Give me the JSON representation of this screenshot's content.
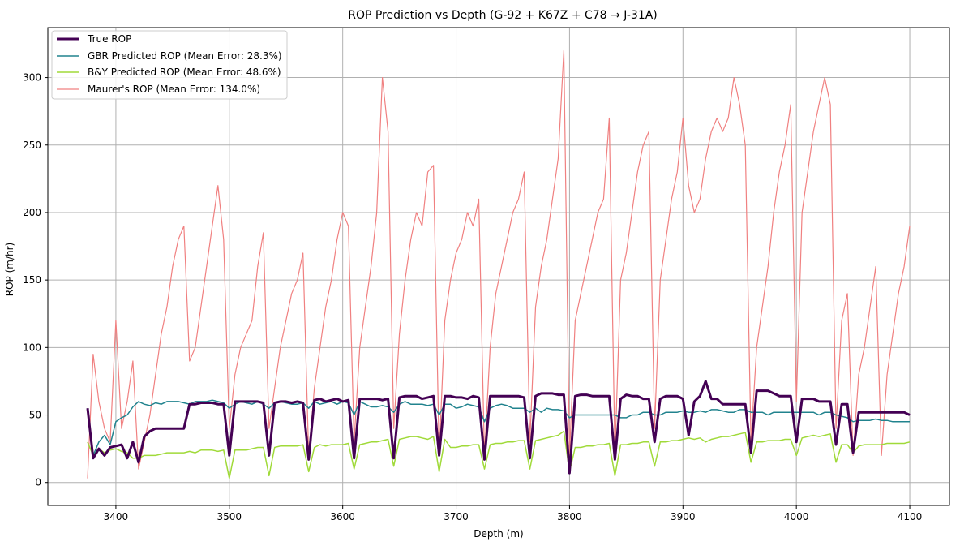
{
  "chart_data": {
    "type": "line",
    "title": "ROP Prediction vs Depth (G-92 + K67Z + C78 → J-31A)",
    "xlabel": "Depth (m)",
    "ylabel": "ROP (m/hr)",
    "xlim": [
      3340,
      4135
    ],
    "ylim": [
      -17,
      337
    ],
    "xticks": [
      3400,
      3500,
      3600,
      3700,
      3800,
      3900,
      4000,
      4100
    ],
    "yticks": [
      0,
      50,
      100,
      150,
      200,
      250,
      300
    ],
    "grid": true,
    "legend_position": "top-left",
    "x": [
      3375,
      3380,
      3385,
      3390,
      3395,
      3400,
      3405,
      3410,
      3415,
      3420,
      3425,
      3430,
      3435,
      3440,
      3445,
      3450,
      3455,
      3460,
      3465,
      3470,
      3475,
      3480,
      3485,
      3490,
      3495,
      3500,
      3505,
      3510,
      3515,
      3520,
      3525,
      3530,
      3535,
      3540,
      3545,
      3550,
      3555,
      3560,
      3565,
      3570,
      3575,
      3580,
      3585,
      3590,
      3595,
      3600,
      3605,
      3610,
      3615,
      3620,
      3625,
      3630,
      3635,
      3640,
      3645,
      3650,
      3655,
      3660,
      3665,
      3670,
      3675,
      3680,
      3685,
      3690,
      3695,
      3700,
      3705,
      3710,
      3715,
      3720,
      3725,
      3730,
      3735,
      3740,
      3745,
      3750,
      3755,
      3760,
      3765,
      3770,
      3775,
      3780,
      3785,
      3790,
      3795,
      3800,
      3805,
      3810,
      3815,
      3820,
      3825,
      3830,
      3835,
      3840,
      3845,
      3850,
      3855,
      3860,
      3865,
      3870,
      3875,
      3880,
      3885,
      3890,
      3895,
      3900,
      3905,
      3910,
      3915,
      3920,
      3925,
      3930,
      3935,
      3940,
      3945,
      3950,
      3955,
      3960,
      3965,
      3970,
      3975,
      3980,
      3985,
      3990,
      3995,
      4000,
      4005,
      4010,
      4015,
      4020,
      4025,
      4030,
      4035,
      4040,
      4045,
      4050,
      4055,
      4060,
      4065,
      4070,
      4075,
      4080,
      4085,
      4090,
      4095,
      4100
    ],
    "series": [
      {
        "name": "True ROP",
        "color": "#440154",
        "width": 3,
        "values": [
          55,
          18,
          25,
          20,
          26,
          27,
          28,
          18,
          30,
          15,
          34,
          38,
          40,
          40,
          40,
          40,
          40,
          40,
          58,
          58,
          59,
          59,
          59,
          58,
          58,
          20,
          60,
          60,
          60,
          60,
          60,
          59,
          20,
          59,
          60,
          60,
          59,
          60,
          59,
          17,
          61,
          62,
          60,
          61,
          62,
          60,
          61,
          18,
          62,
          62,
          62,
          62,
          61,
          62,
          18,
          63,
          64,
          64,
          64,
          62,
          63,
          64,
          20,
          64,
          64,
          63,
          63,
          62,
          64,
          63,
          17,
          64,
          64,
          64,
          64,
          64,
          64,
          63,
          18,
          64,
          66,
          66,
          66,
          65,
          65,
          7,
          64,
          65,
          65,
          64,
          64,
          64,
          64,
          17,
          62,
          65,
          64,
          64,
          62,
          62,
          30,
          62,
          64,
          64,
          64,
          62,
          35,
          60,
          64,
          75,
          62,
          62,
          58,
          58,
          58,
          58,
          58,
          22,
          68,
          68,
          68,
          66,
          64,
          64,
          64,
          30,
          62,
          62,
          62,
          60,
          60,
          60,
          28,
          58,
          58,
          22,
          52,
          52,
          52,
          52,
          52,
          52,
          52,
          52,
          52,
          50
        ]
      },
      {
        "name": "GBR Predicted ROP (Mean Error: 28.3%)",
        "color": "#21838e",
        "width": 1.5,
        "values": [
          55,
          20,
          30,
          35,
          28,
          45,
          48,
          50,
          56,
          60,
          58,
          57,
          59,
          58,
          60,
          60,
          60,
          59,
          58,
          60,
          60,
          60,
          61,
          60,
          59,
          55,
          58,
          60,
          59,
          58,
          60,
          58,
          55,
          59,
          60,
          59,
          58,
          58,
          59,
          55,
          60,
          58,
          59,
          60,
          58,
          60,
          59,
          50,
          60,
          58,
          56,
          56,
          57,
          56,
          52,
          58,
          60,
          58,
          58,
          58,
          57,
          58,
          50,
          58,
          58,
          55,
          56,
          58,
          57,
          56,
          45,
          55,
          57,
          58,
          57,
          55,
          55,
          55,
          52,
          55,
          52,
          55,
          54,
          54,
          53,
          48,
          50,
          50,
          50,
          50,
          50,
          50,
          50,
          50,
          48,
          48,
          50,
          50,
          52,
          52,
          50,
          50,
          52,
          52,
          52,
          53,
          52,
          52,
          53,
          52,
          54,
          54,
          53,
          52,
          52,
          54,
          54,
          52,
          52,
          52,
          50,
          52,
          52,
          52,
          52,
          52,
          52,
          52,
          52,
          50,
          52,
          52,
          50,
          49,
          48,
          45,
          46,
          46,
          46,
          47,
          46,
          46,
          45,
          45,
          45,
          45
        ]
      },
      {
        "name": "B&Y Predicted ROP (Mean Error: 48.6%)",
        "color": "#a0da39",
        "width": 1.5,
        "values": [
          30,
          20,
          25,
          22,
          24,
          25,
          23,
          22,
          18,
          18,
          20,
          20,
          20,
          21,
          22,
          22,
          22,
          22,
          23,
          22,
          24,
          24,
          24,
          23,
          24,
          3,
          24,
          24,
          24,
          25,
          26,
          26,
          5,
          26,
          27,
          27,
          27,
          27,
          28,
          8,
          26,
          28,
          27,
          28,
          28,
          28,
          29,
          10,
          28,
          29,
          30,
          30,
          31,
          32,
          12,
          32,
          33,
          34,
          34,
          33,
          32,
          34,
          8,
          32,
          26,
          26,
          27,
          27,
          28,
          28,
          10,
          28,
          29,
          29,
          30,
          30,
          31,
          31,
          10,
          31,
          32,
          33,
          34,
          35,
          38,
          8,
          26,
          26,
          27,
          27,
          28,
          28,
          29,
          5,
          28,
          28,
          29,
          29,
          30,
          30,
          12,
          30,
          30,
          31,
          31,
          32,
          33,
          32,
          33,
          30,
          32,
          33,
          34,
          34,
          35,
          36,
          37,
          15,
          30,
          30,
          31,
          31,
          31,
          32,
          32,
          20,
          33,
          34,
          35,
          34,
          35,
          36,
          15,
          28,
          28,
          22,
          27,
          28,
          28,
          28,
          28,
          29,
          29,
          29,
          29,
          30
        ]
      },
      {
        "name": "Maurer's ROP (Mean Error: 134.0%)",
        "color": "#f08080",
        "width": 1.2,
        "values": [
          3,
          95,
          60,
          40,
          30,
          120,
          40,
          60,
          90,
          10,
          30,
          50,
          80,
          110,
          130,
          160,
          180,
          190,
          90,
          100,
          130,
          160,
          190,
          220,
          180,
          40,
          80,
          100,
          110,
          120,
          160,
          185,
          40,
          70,
          100,
          120,
          140,
          150,
          170,
          20,
          70,
          100,
          130,
          150,
          180,
          200,
          190,
          30,
          100,
          130,
          160,
          200,
          300,
          260,
          40,
          110,
          150,
          180,
          200,
          190,
          230,
          235,
          20,
          120,
          150,
          170,
          180,
          200,
          190,
          210,
          20,
          100,
          140,
          160,
          180,
          200,
          210,
          230,
          30,
          130,
          160,
          180,
          210,
          240,
          320,
          20,
          120,
          140,
          160,
          180,
          200,
          210,
          270,
          20,
          150,
          170,
          200,
          230,
          250,
          260,
          40,
          150,
          180,
          210,
          230,
          270,
          220,
          200,
          210,
          240,
          260,
          270,
          260,
          270,
          300,
          280,
          250,
          30,
          100,
          130,
          160,
          200,
          230,
          250,
          280,
          60,
          200,
          230,
          260,
          280,
          300,
          280,
          40,
          120,
          140,
          20,
          80,
          100,
          130,
          160,
          20,
          80,
          110,
          140,
          160,
          190
        ]
      }
    ]
  }
}
